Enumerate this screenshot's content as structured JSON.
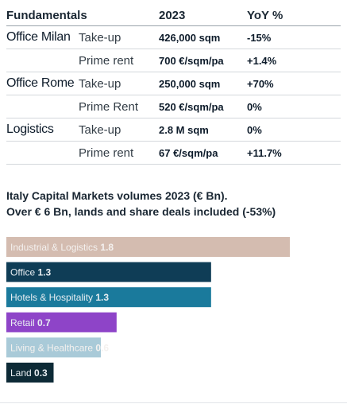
{
  "table": {
    "headers": {
      "fundamentals": "Fundamentals",
      "year": "2023",
      "yoy": "YoY %"
    },
    "rows": [
      {
        "group": "Office Milan",
        "metric": "Take-up",
        "value": "426,000 sqm",
        "yoy": "-15%"
      },
      {
        "group": "",
        "metric": "Prime rent",
        "value": "700 €/sqm/pa",
        "yoy": "+1.4%"
      },
      {
        "group": "Office Rome",
        "metric": "Take-up",
        "value": "250,000 sqm",
        "yoy": "+70%"
      },
      {
        "group": "",
        "metric": "Prime Rent",
        "value": "520 €/sqm/pa",
        "yoy": "0%"
      },
      {
        "group": "Logistics",
        "metric": "Take-up",
        "value": "2.8 M sqm",
        "yoy": "0%"
      },
      {
        "group": "",
        "metric": "Prime rent",
        "value": "67 €/sqm/pa",
        "yoy": "+11.7%"
      }
    ]
  },
  "chart_title": {
    "line1": "Italy Capital Markets volumes 2023 (€ Bn).",
    "line2": "Over € 6 Bn, lands and share deals included (-53%)"
  },
  "chart_data": {
    "type": "bar",
    "orientation": "horizontal",
    "title": "Italy Capital Markets volumes 2023 (€ Bn). Over € 6 Bn, lands and share deals included (-53%)",
    "categories": [
      "Industrial & Logistics",
      "Office",
      "Hotels & Hospitality",
      "Retail",
      "Living & Healthcare",
      "Land"
    ],
    "values": [
      1.8,
      1.3,
      1.3,
      0.7,
      0.6,
      0.3
    ],
    "value_labels": [
      "1.8",
      "1.3",
      "1.3",
      "0.7",
      "0.6",
      "0.3"
    ],
    "colors": [
      "#d4bcb0",
      "#0f3d56",
      "#1a7a9c",
      "#8e44c8",
      "#a9cad8",
      "#0d2a36"
    ],
    "xlim": [
      0,
      2.0
    ],
    "grid": false,
    "legend": "none"
  }
}
